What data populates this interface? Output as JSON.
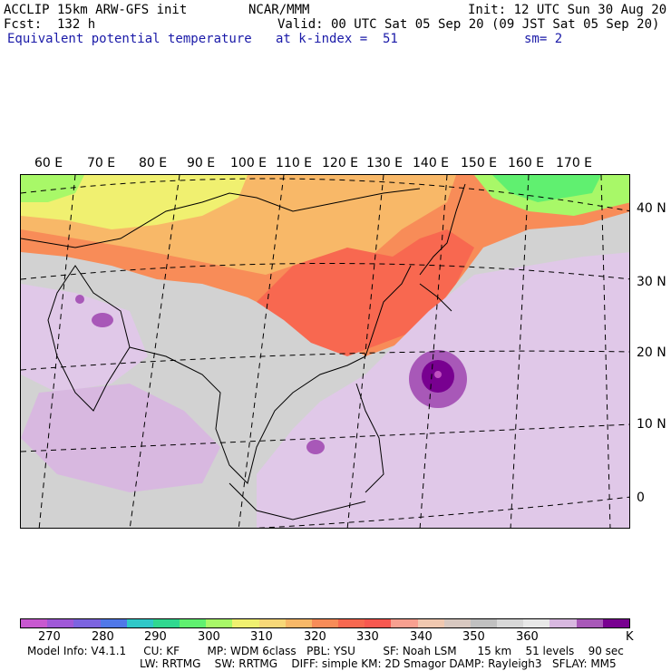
{
  "header": {
    "model": "ACCLIP 15km ARW-GFS init",
    "center": "NCAR/MMM",
    "init": "Init: 12 UTC Sun 30 Aug 20",
    "fcst": "Fcst:  132 h",
    "valid": "Valid: 00 UTC Sat 05 Sep 20 (09 JST Sat 05 Sep 20)",
    "field": "Equivalent potential temperature",
    "level": "at k-index =  51",
    "smooth": "sm= 2"
  },
  "map": {
    "lon_labels": [
      "60 E",
      "70 E",
      "80 E",
      "90 E",
      "100 E",
      "110 E",
      "120 E",
      "130 E",
      "140 E",
      "150 E",
      "160 E",
      "170 E"
    ],
    "lat_labels": [
      "40 N",
      "30 N",
      "20 N",
      "10 N",
      "0"
    ]
  },
  "colorbar": {
    "colors": [
      "#c858d0",
      "#a058d8",
      "#7c64e0",
      "#5078e8",
      "#30c8c8",
      "#30d890",
      "#60f070",
      "#a8f868",
      "#f0f070",
      "#f8d878",
      "#f8b868",
      "#f88c58",
      "#f86850",
      "#f85850",
      "#f8a090",
      "#f0c8b0",
      "#d8c8c0",
      "#c0c0c0",
      "#d8d8d8",
      "#e8e8e8",
      "#d8b8e0",
      "#a858b8",
      "#780090"
    ],
    "ticks": [
      "270",
      "280",
      "290",
      "300",
      "310",
      "320",
      "330",
      "340",
      "350",
      "360"
    ],
    "unit": "K"
  },
  "model_info": {
    "line1": "Model Info: V4.1.1     CU: KF        MP: WDM 6class   PBL: YSU        SF: Noah LSM      15 km    51 levels    90 sec",
    "line2": "LW: RRTMG    SW: RRTMG    DIFF: simple KM: 2D Smagor DAMP: Rayleigh3   SFLAY: MM5"
  }
}
